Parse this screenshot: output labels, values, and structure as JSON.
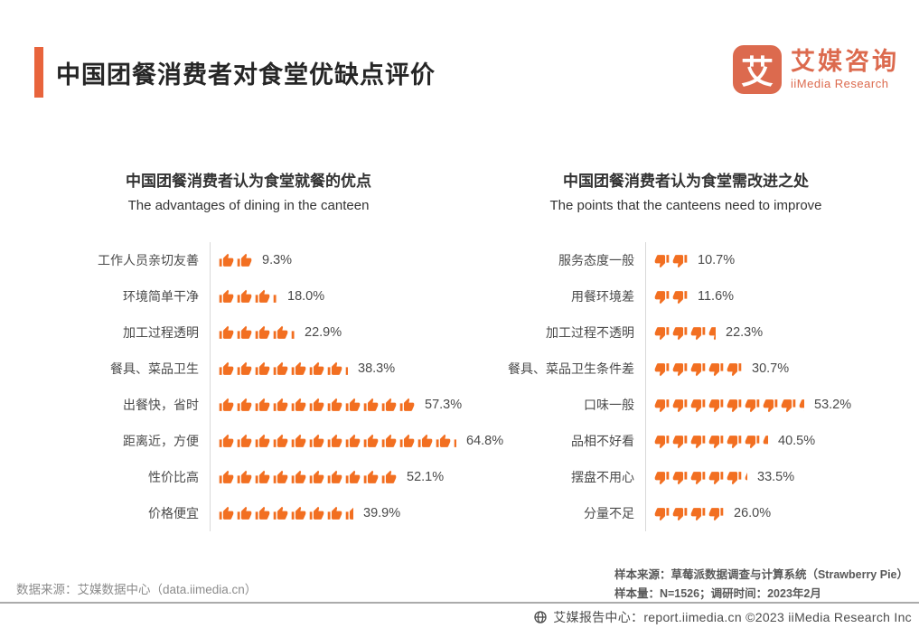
{
  "header": {
    "title": "中国团餐消费者对食堂优缺点评价"
  },
  "logo": {
    "mark_glyph": "艾",
    "name_cn": "艾媒咨询",
    "name_en": "iiMedia Research"
  },
  "colors": {
    "accent": "#E8643C",
    "logo_orange": "#DC6A4E",
    "icon_orange": "#F26F21"
  },
  "chart_data": [
    {
      "type": "pictogram_bar",
      "panel": "advantages",
      "title": "中国团餐消费者认为食堂就餐的优点",
      "subtitle": "The advantages of dining in the canteen",
      "icon": "thumbs-up",
      "icon_color": "#F26F21",
      "unit_percent_per_icon": 5,
      "xlim": [
        0,
        70
      ],
      "rows": [
        {
          "label": "工作人员亲切友善",
          "value": 9.3,
          "display": "9.3%",
          "icons_full": 2,
          "icon_partial": 0
        },
        {
          "label": "环境简单干净",
          "value": 18.0,
          "display": "18.0%",
          "icons_full": 3,
          "icon_partial": 0.3
        },
        {
          "label": "加工过程透明",
          "value": 22.9,
          "display": "22.9%",
          "icons_full": 4,
          "icon_partial": 0.25
        },
        {
          "label": "餐具、菜品卫生",
          "value": 38.3,
          "display": "38.3%",
          "icons_full": 7,
          "icon_partial": 0.2
        },
        {
          "label": "出餐快，省时",
          "value": 57.3,
          "display": "57.3%",
          "icons_full": 11,
          "icon_partial": 0
        },
        {
          "label": "距离近，方便",
          "value": 64.8,
          "display": "64.8%",
          "icons_full": 13,
          "icon_partial": 0.15
        },
        {
          "label": "性价比高",
          "value": 52.1,
          "display": "52.1%",
          "icons_full": 10,
          "icon_partial": 0
        },
        {
          "label": "价格便宜",
          "value": 39.9,
          "display": "39.9%",
          "icons_full": 7,
          "icon_partial": 0.55
        }
      ]
    },
    {
      "type": "pictogram_bar",
      "panel": "improvements",
      "title": "中国团餐消费者认为食堂需改进之处",
      "subtitle": "The points that the canteens need to improve",
      "icon": "thumbs-down",
      "icon_color": "#F26F21",
      "unit_percent_per_icon": 6.2,
      "xlim": [
        0,
        60
      ],
      "rows": [
        {
          "label": "服务态度一般",
          "value": 10.7,
          "display": "10.7%",
          "icons_full": 2,
          "icon_partial": 0
        },
        {
          "label": "用餐环境差",
          "value": 11.6,
          "display": "11.6%",
          "icons_full": 2,
          "icon_partial": 0
        },
        {
          "label": "加工过程不透明",
          "value": 22.3,
          "display": "22.3%",
          "icons_full": 3,
          "icon_partial": 0.45
        },
        {
          "label": "餐具、菜品卫生条件差",
          "value": 30.7,
          "display": "30.7%",
          "icons_full": 5,
          "icon_partial": 0
        },
        {
          "label": "口味一般",
          "value": 53.2,
          "display": "53.2%",
          "icons_full": 8,
          "icon_partial": 0.35
        },
        {
          "label": "品相不好看",
          "value": 40.5,
          "display": "40.5%",
          "icons_full": 6,
          "icon_partial": 0.35
        },
        {
          "label": "摆盘不用心",
          "value": 33.5,
          "display": "33.5%",
          "icons_full": 5,
          "icon_partial": 0.2
        },
        {
          "label": "分量不足",
          "value": 26.0,
          "display": "26.0%",
          "icons_full": 4,
          "icon_partial": 0
        }
      ]
    }
  ],
  "footnotes": {
    "source_left": "数据来源：艾媒数据中心（data.iimedia.cn）",
    "sample_source": "样本来源：草莓派数据调查与计算系统（Strawberry Pie）",
    "sample_size": "样本量：N=1526；调研时间：2023年2月"
  },
  "footer": {
    "text": "艾媒报告中心：report.iimedia.cn  ©2023  iiMedia Research Inc"
  }
}
